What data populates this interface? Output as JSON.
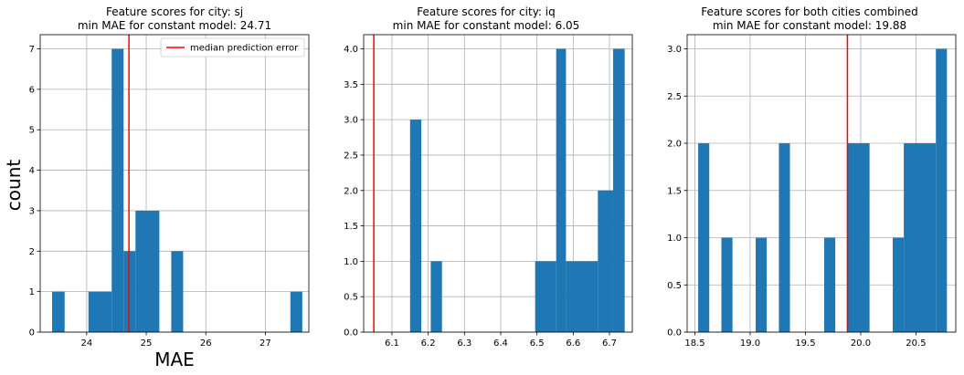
{
  "chart_data": [
    {
      "type": "bar",
      "title_line1": "Feature scores for city: sj",
      "title_line2": "min MAE for constant model: 24.71",
      "xlabel": "MAE",
      "ylabel": "count",
      "xlim": [
        23.22,
        27.73
      ],
      "ylim": [
        0,
        7.35
      ],
      "xticks": [
        24,
        25,
        26,
        27
      ],
      "xtick_labels": [
        "24",
        "25",
        "26",
        "27"
      ],
      "yticks": [
        0,
        1,
        2,
        3,
        4,
        5,
        6,
        7
      ],
      "ytick_labels": [
        "0",
        "1",
        "2",
        "3",
        "4",
        "5",
        "6",
        "7"
      ],
      "bins": [
        {
          "x0": 23.42,
          "x1": 23.63,
          "count": 1
        },
        {
          "x0": 24.03,
          "x1": 24.42,
          "count": 1
        },
        {
          "x0": 24.42,
          "x1": 24.62,
          "count": 7
        },
        {
          "x0": 24.62,
          "x1": 24.82,
          "count": 2
        },
        {
          "x0": 24.82,
          "x1": 25.22,
          "count": 3
        },
        {
          "x0": 25.42,
          "x1": 25.62,
          "count": 2
        },
        {
          "x0": 27.42,
          "x1": 27.62,
          "count": 1
        }
      ],
      "median_line": 24.71,
      "grid": true,
      "legend": {
        "label": "median prediction error",
        "position": "top-right",
        "color": "#ff0000"
      },
      "bar_color": "#1f77b4"
    },
    {
      "type": "bar",
      "title_line1": "Feature scores for city: iq",
      "title_line2": "min MAE for constant model: 6.05",
      "xlabel": "",
      "ylabel": "",
      "xlim": [
        6.022,
        6.763
      ],
      "ylim": [
        0,
        4.2
      ],
      "xticks": [
        6.1,
        6.2,
        6.3,
        6.4,
        6.5,
        6.6,
        6.7
      ],
      "xtick_labels": [
        "6.1",
        "6.2",
        "6.3",
        "6.4",
        "6.5",
        "6.6",
        "6.7"
      ],
      "yticks": [
        0,
        0.5,
        1.0,
        1.5,
        2.0,
        2.5,
        3.0,
        3.5,
        4.0
      ],
      "ytick_labels": [
        "0.0",
        "0.5",
        "1.0",
        "1.5",
        "2.0",
        "2.5",
        "3.0",
        "3.5",
        "4.0"
      ],
      "bins": [
        {
          "x0": 6.15,
          "x1": 6.181,
          "count": 3
        },
        {
          "x0": 6.207,
          "x1": 6.238,
          "count": 1
        },
        {
          "x0": 6.495,
          "x1": 6.553,
          "count": 1
        },
        {
          "x0": 6.553,
          "x1": 6.58,
          "count": 4
        },
        {
          "x0": 6.58,
          "x1": 6.668,
          "count": 1
        },
        {
          "x0": 6.668,
          "x1": 6.71,
          "count": 2
        },
        {
          "x0": 6.71,
          "x1": 6.742,
          "count": 4
        }
      ],
      "median_line": 6.05,
      "grid": true,
      "bar_color": "#1f77b4"
    },
    {
      "type": "bar",
      "title_line1": "Feature scores for both cities combined",
      "title_line2": "min MAE for constant model: 19.88",
      "xlabel": "",
      "ylabel": "",
      "xlim": [
        18.43,
        20.86
      ],
      "ylim": [
        0,
        3.15
      ],
      "xticks": [
        18.5,
        19.0,
        19.5,
        20.0,
        20.5
      ],
      "xtick_labels": [
        "18.5",
        "19.0",
        "19.5",
        "20.0",
        "20.5"
      ],
      "yticks": [
        0,
        0.5,
        1.0,
        1.5,
        2.0,
        2.5,
        3.0
      ],
      "ytick_labels": [
        "0.0",
        "0.5",
        "1.0",
        "1.5",
        "2.0",
        "2.5",
        "3.0"
      ],
      "bins": [
        {
          "x0": 18.53,
          "x1": 18.63,
          "count": 2
        },
        {
          "x0": 18.74,
          "x1": 18.84,
          "count": 1
        },
        {
          "x0": 19.05,
          "x1": 19.15,
          "count": 1
        },
        {
          "x0": 19.26,
          "x1": 19.36,
          "count": 2
        },
        {
          "x0": 19.67,
          "x1": 19.77,
          "count": 1
        },
        {
          "x0": 19.88,
          "x1": 20.08,
          "count": 2
        },
        {
          "x0": 20.29,
          "x1": 20.39,
          "count": 1
        },
        {
          "x0": 20.39,
          "x1": 20.68,
          "count": 2
        },
        {
          "x0": 20.68,
          "x1": 20.78,
          "count": 3
        }
      ],
      "median_line": 19.88,
      "grid": true,
      "bar_color": "#1f77b4"
    }
  ]
}
